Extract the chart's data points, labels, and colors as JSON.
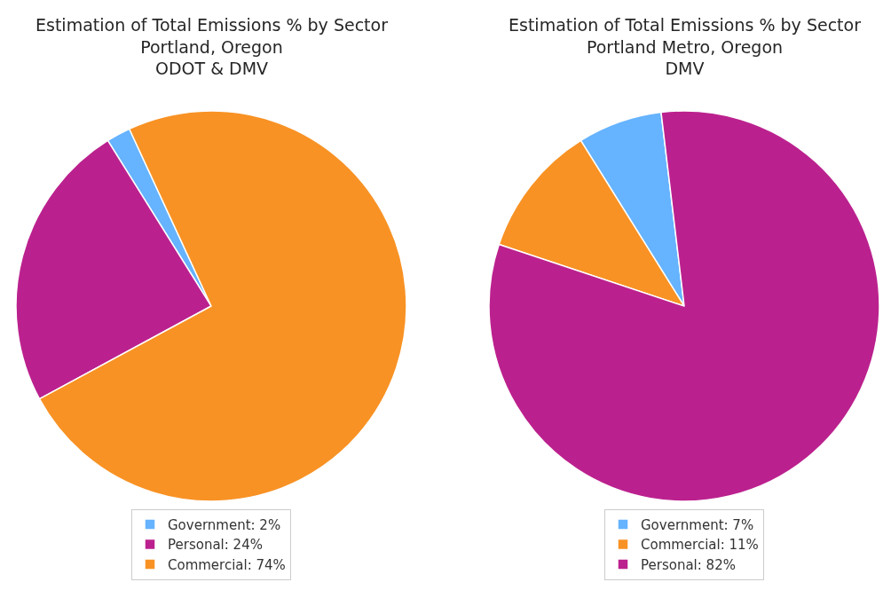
{
  "chart_data": [
    {
      "type": "pie",
      "title": "Estimation of Total Emissions % by Sector\nPortland, Oregon\nODOT & DMV",
      "categories": [
        "Government: 2%",
        "Personal: 24%",
        "Commercial: 74%"
      ],
      "values": [
        2,
        24,
        74
      ],
      "colors": [
        "#66b3ff",
        "#bb218e",
        "#f89224"
      ],
      "legend": "bottom"
    },
    {
      "type": "pie",
      "title": "Estimation of Total Emissions % by Sector\nPortland Metro, Oregon\nDMV",
      "categories": [
        "Government: 7%",
        "Commercial: 11%",
        "Personal: 82%"
      ],
      "values": [
        7,
        11,
        82
      ],
      "colors": [
        "#66b3ff",
        "#f89224",
        "#bb218e"
      ],
      "legend": "bottom"
    }
  ]
}
